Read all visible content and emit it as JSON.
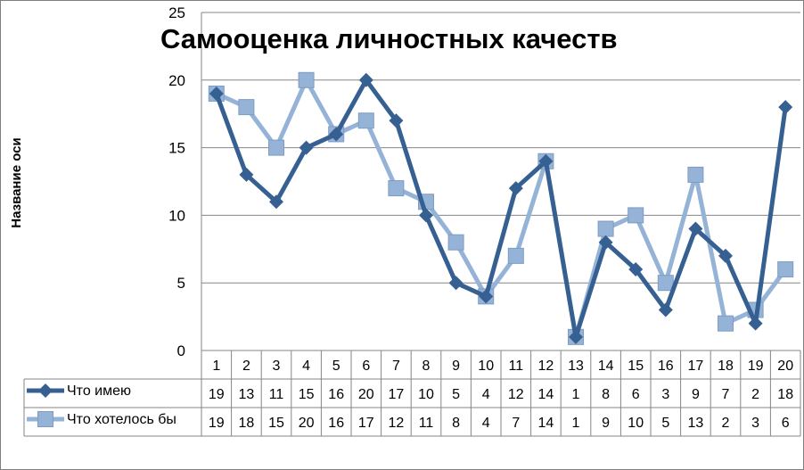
{
  "chart_data": {
    "type": "line",
    "title": "Самооценка личностных качеств",
    "xlabel": "",
    "ylabel": "Название оси",
    "ylim": [
      0,
      25
    ],
    "y_ticks": [
      "0",
      "5",
      "10",
      "15",
      "20",
      "25"
    ],
    "grid": true,
    "legend": "data-table",
    "categories": [
      "1",
      "2",
      "3",
      "4",
      "5",
      "6",
      "7",
      "8",
      "9",
      "10",
      "11",
      "12",
      "13",
      "14",
      "15",
      "16",
      "17",
      "18",
      "19",
      "20"
    ],
    "series": [
      {
        "name": "Что имею",
        "color": "#366092",
        "marker": "diamond",
        "values": [
          19,
          13,
          11,
          15,
          16,
          20,
          17,
          10,
          5,
          4,
          12,
          14,
          1,
          8,
          6,
          3,
          9,
          7,
          2,
          18
        ]
      },
      {
        "name": "Что хотелось бы",
        "color": "#95b3d7",
        "marker": "square",
        "values": [
          19,
          18,
          15,
          20,
          16,
          17,
          12,
          11,
          8,
          4,
          7,
          14,
          1,
          9,
          10,
          5,
          13,
          2,
          3,
          6
        ]
      }
    ]
  }
}
